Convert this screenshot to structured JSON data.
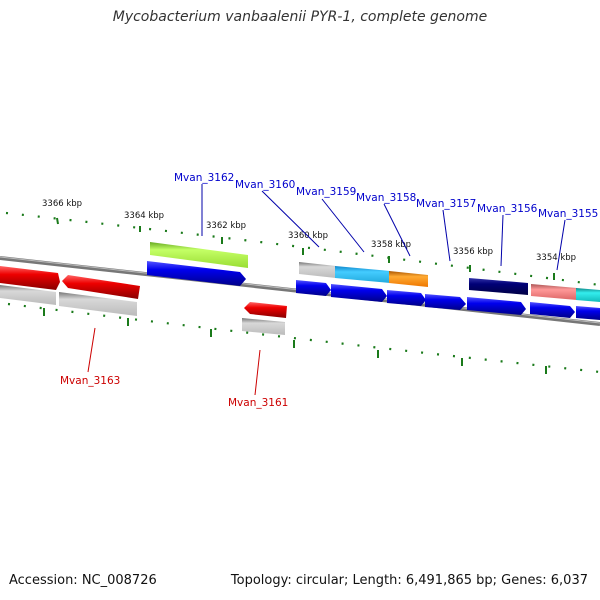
{
  "title": "Mycobacterium vanbaalenii PYR-1, complete genome",
  "footer": {
    "accession": "Accession: NC_008726",
    "stats": "Topology: circular; Length: 6,491,865 bp; Genes: 6,037"
  },
  "colors": {
    "label_forward": "#0000cc",
    "label_reverse": "#cc0000",
    "backbone": "#777777",
    "tick": "#1a7a1a",
    "cds_blue": "#0000ee",
    "cds_red": "#ee0000",
    "gray": "#b0b0b0",
    "yellowgreen": "#aaee44",
    "lightblue": "#33bbee",
    "orange": "#ff8811",
    "navy": "#000077",
    "salmon": "#ee7777",
    "cyan": "#11cccc"
  },
  "ticks": {
    "kbp_labels": [
      "3366 kbp",
      "3364 kbp",
      "3362 kbp",
      "3360 kbp",
      "3358 kbp",
      "3356 kbp",
      "3354 kbp"
    ]
  },
  "genes_forward": [
    {
      "name": "Mvan_3162"
    },
    {
      "name": "Mvan_3160"
    },
    {
      "name": "Mvan_3159"
    },
    {
      "name": "Mvan_3158"
    },
    {
      "name": "Mvan_3157"
    },
    {
      "name": "Mvan_3156"
    },
    {
      "name": "Mvan_3155"
    }
  ],
  "genes_reverse": [
    {
      "name": "Mvan_3163"
    },
    {
      "name": "Mvan_3161"
    }
  ]
}
